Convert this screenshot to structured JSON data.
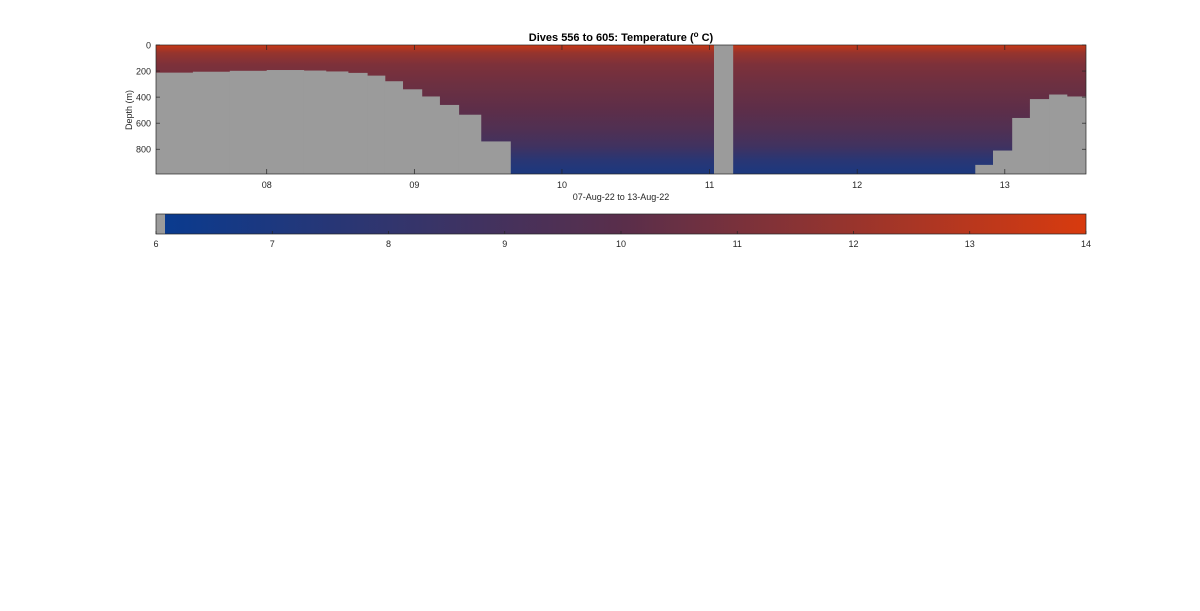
{
  "chart_data": {
    "type": "heatmap",
    "title": "Dives 556 to 605: Temperature (",
    "title_superscript": "o",
    "title_suffix": " C)",
    "xlabel": "07-Aug-22 to 13-Aug-22",
    "ylabel": "Depth (m)",
    "xlim": [
      7.25,
      13.55
    ],
    "ylim": [
      990,
      0
    ],
    "x_ticks": [
      8,
      9,
      10,
      11,
      12,
      13
    ],
    "x_tick_labels": [
      "08",
      "09",
      "10",
      "11",
      "12",
      "13"
    ],
    "y_ticks": [
      0,
      200,
      400,
      600,
      800
    ],
    "y_tick_labels": [
      "0",
      "200",
      "400",
      "600",
      "800"
    ],
    "seafloor_color": "#9b9b9b",
    "gap": {
      "start": 11.03,
      "end": 11.16
    },
    "seafloor_steps": [
      {
        "x0": 7.25,
        "x1": 7.5,
        "depth": 212
      },
      {
        "x0": 7.5,
        "x1": 7.75,
        "depth": 205
      },
      {
        "x0": 7.75,
        "x1": 8.0,
        "depth": 198
      },
      {
        "x0": 8.0,
        "x1": 8.25,
        "depth": 192
      },
      {
        "x0": 8.25,
        "x1": 8.4,
        "depth": 196
      },
      {
        "x0": 8.4,
        "x1": 8.55,
        "depth": 203
      },
      {
        "x0": 8.55,
        "x1": 8.68,
        "depth": 214
      },
      {
        "x0": 8.68,
        "x1": 8.8,
        "depth": 235
      },
      {
        "x0": 8.8,
        "x1": 8.92,
        "depth": 278
      },
      {
        "x0": 8.92,
        "x1": 9.05,
        "depth": 340
      },
      {
        "x0": 9.05,
        "x1": 9.17,
        "depth": 395
      },
      {
        "x0": 9.17,
        "x1": 9.3,
        "depth": 460
      },
      {
        "x0": 9.3,
        "x1": 9.45,
        "depth": 535
      },
      {
        "x0": 9.45,
        "x1": 9.65,
        "depth": 740
      },
      {
        "x0": 12.8,
        "x1": 12.92,
        "depth": 920
      },
      {
        "x0": 12.92,
        "x1": 13.05,
        "depth": 810
      },
      {
        "x0": 13.05,
        "x1": 13.17,
        "depth": 560
      },
      {
        "x0": 13.17,
        "x1": 13.3,
        "depth": 415
      },
      {
        "x0": 13.3,
        "x1": 13.42,
        "depth": 380
      },
      {
        "x0": 13.42,
        "x1": 13.55,
        "depth": 395
      }
    ],
    "temperature_profile": [
      {
        "depth": 0,
        "value": 13.8
      },
      {
        "depth": 15,
        "value": 13.0
      },
      {
        "depth": 60,
        "value": 11.9
      },
      {
        "depth": 150,
        "value": 11.1
      },
      {
        "depth": 300,
        "value": 10.6
      },
      {
        "depth": 500,
        "value": 10.1
      },
      {
        "depth": 650,
        "value": 9.5
      },
      {
        "depth": 780,
        "value": 8.7
      },
      {
        "depth": 880,
        "value": 7.6
      },
      {
        "depth": 990,
        "value": 6.9
      }
    ],
    "colorbar": {
      "range": [
        6,
        14
      ],
      "ticks": [
        "6",
        "7",
        "8",
        "9",
        "10",
        "11",
        "12",
        "13",
        "14"
      ],
      "low_color": "#0a3b8f",
      "mid_color": "#5a2e4a",
      "high_color": "#d83a0e"
    }
  }
}
